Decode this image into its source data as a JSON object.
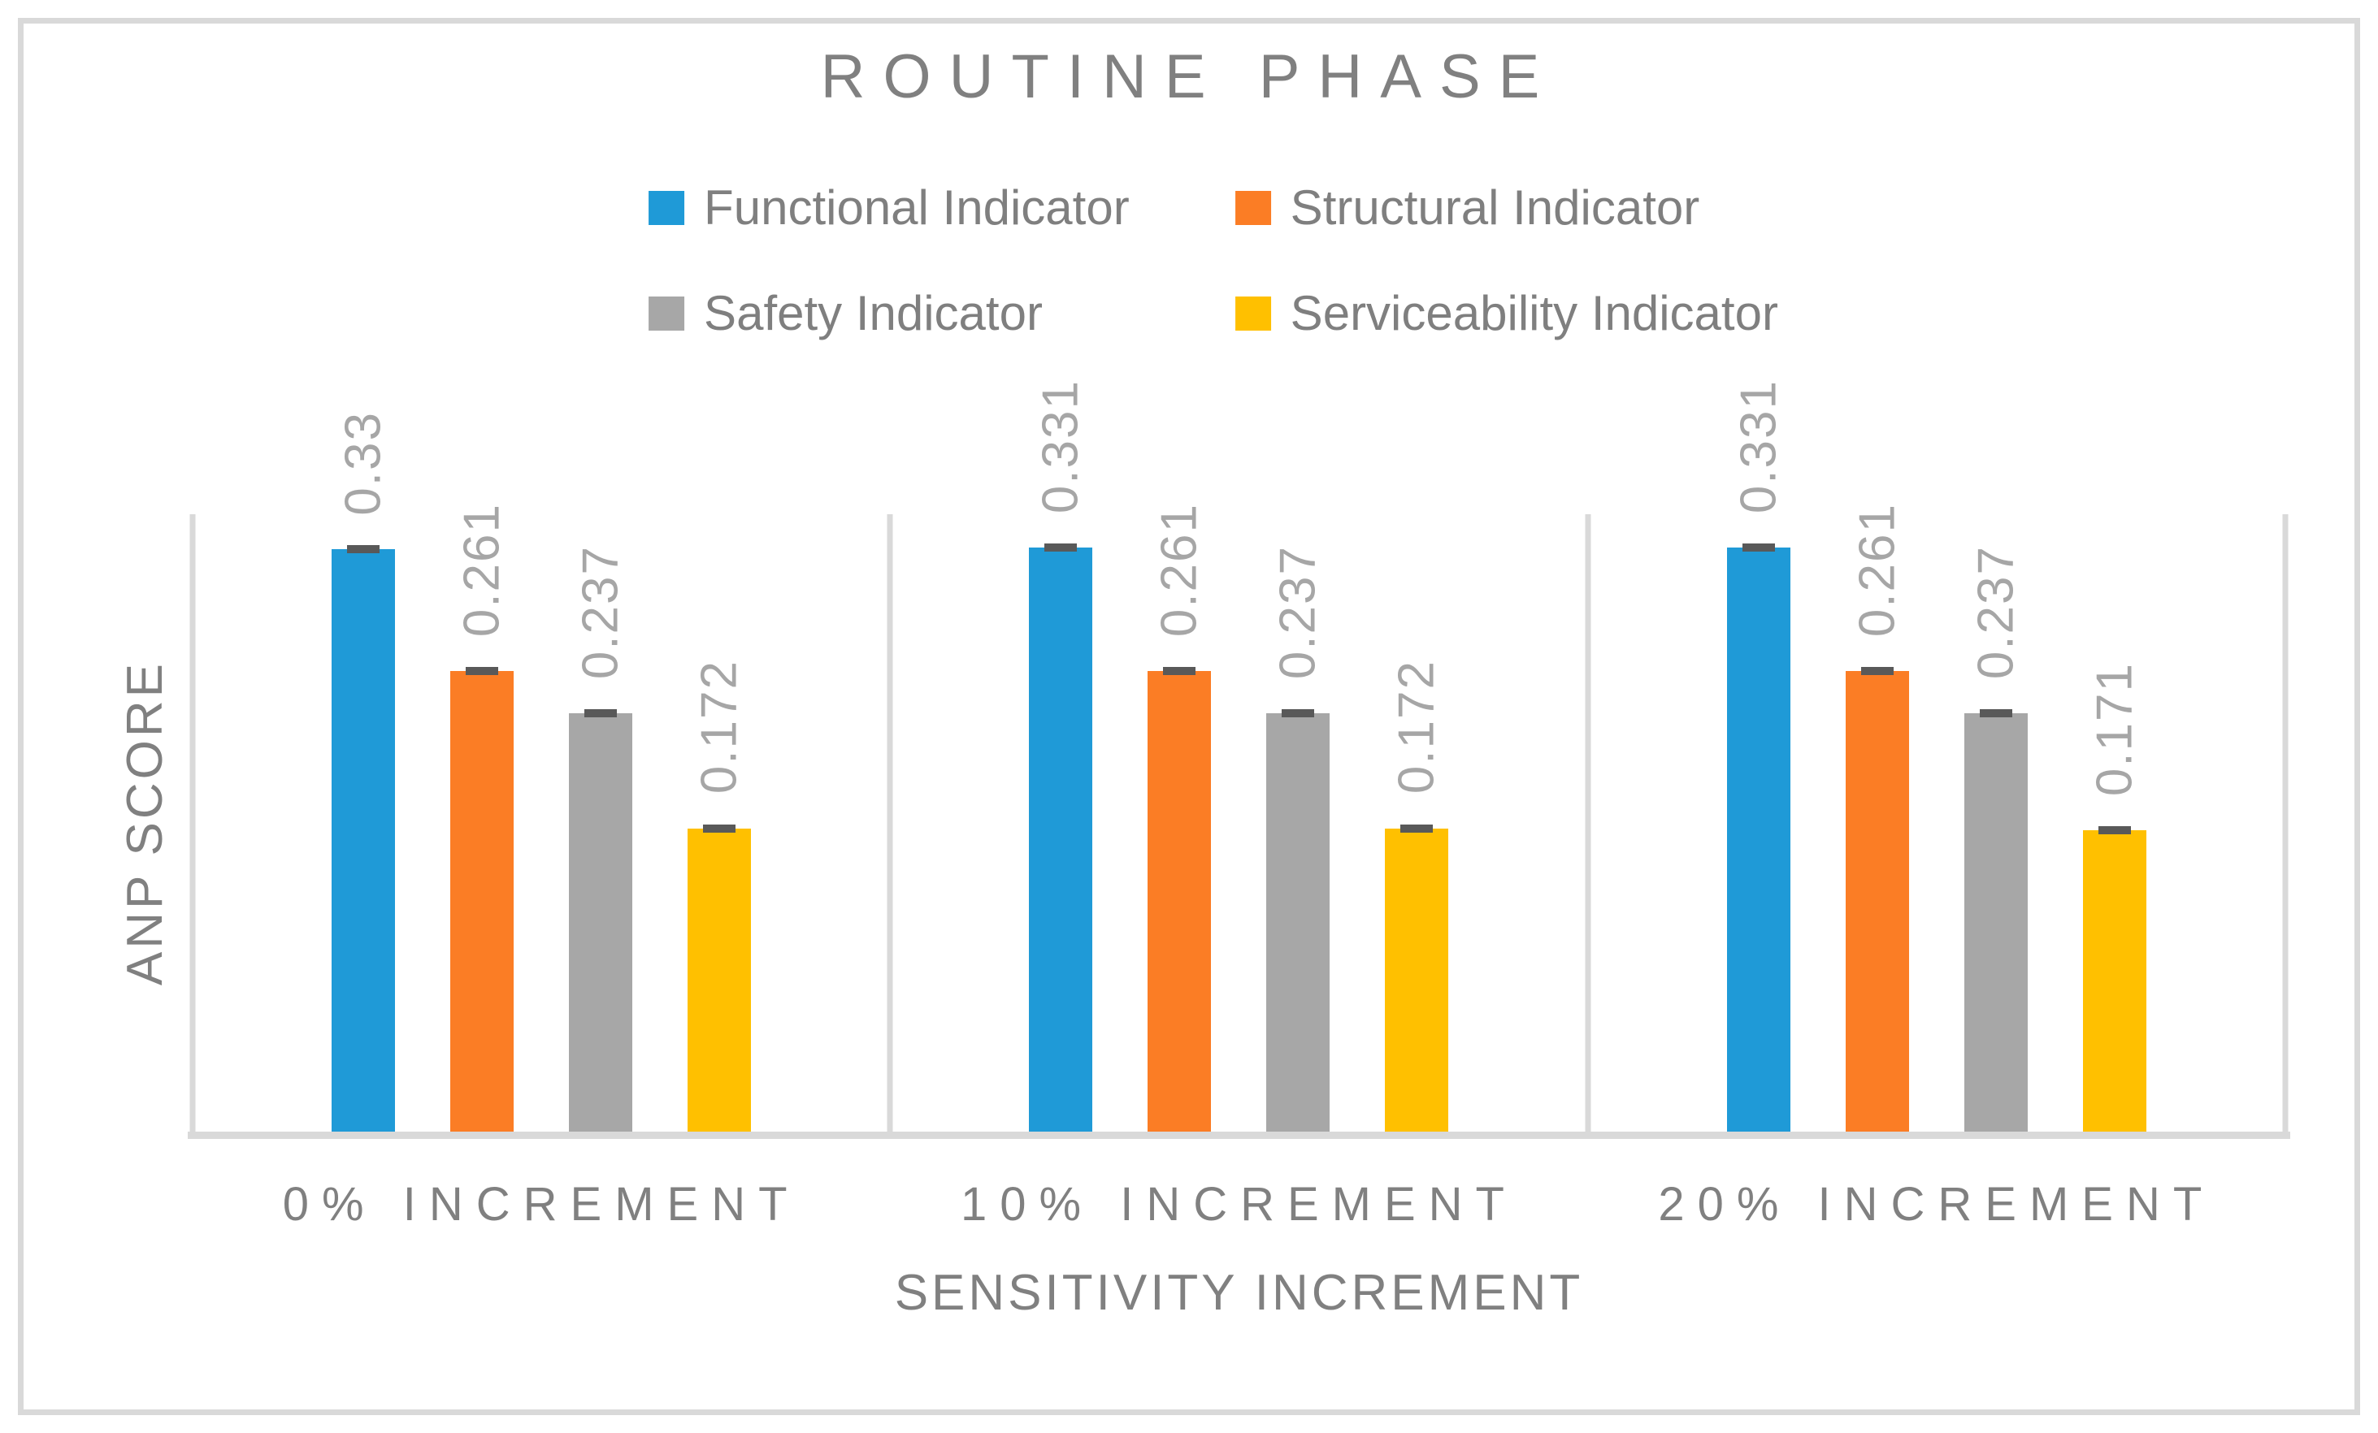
{
  "chart_data": {
    "type": "bar",
    "title": "ROUTINE PHASE",
    "xlabel": "SENSITIVITY INCREMENT",
    "ylabel": "ANP SCORE",
    "categories": [
      "0% INCREMENT",
      "10% INCREMENT",
      "20% INCREMENT"
    ],
    "series": [
      {
        "name": "Functional Indicator",
        "color": "#1F9AD7",
        "values": [
          0.33,
          0.331,
          0.331
        ],
        "labels": [
          "0.33",
          "0.331",
          "0.331"
        ]
      },
      {
        "name": "Structural Indicator",
        "color": "#FB7D25",
        "values": [
          0.261,
          0.261,
          0.261
        ],
        "labels": [
          "0.261",
          "0.261",
          "0.261"
        ]
      },
      {
        "name": "Safety Indicator",
        "color": "#A7A7A7",
        "values": [
          0.237,
          0.237,
          0.237
        ],
        "labels": [
          "0.237",
          "0.237",
          "0.237"
        ]
      },
      {
        "name": "Serviceability Indicator",
        "color": "#FFC000",
        "values": [
          0.172,
          0.172,
          0.171
        ],
        "labels": [
          "0.172",
          "0.172",
          "0.171"
        ]
      }
    ],
    "ylim": [
      0,
      0.35
    ],
    "y_axis_tick_labels": "none",
    "grid": "vertical-category-separator-lines",
    "legend_position": "top-center-two-rows",
    "error_bars": {
      "shown": true,
      "style": "cap-at-bar-top",
      "color": "#595959"
    },
    "data_labels": {
      "shown": true,
      "rotation_deg": 90,
      "position": "above-bar",
      "color": "#A6A6A6"
    }
  },
  "style_colors": {
    "background": "#FFFFFF",
    "chart_border": "#D9D9D9",
    "axis_and_grid_lines": "#D9D9D9",
    "title_text": "#808080",
    "legend_text": "#7F7F7F",
    "axis_label_text": "#808080",
    "data_label_text": "#A6A6A6",
    "error_cap": "#595959"
  }
}
